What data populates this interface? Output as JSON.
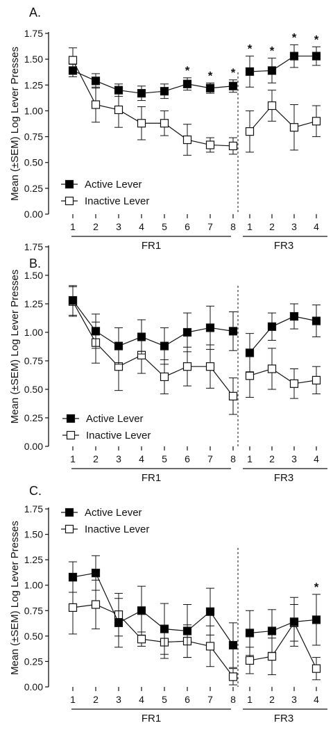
{
  "figure": {
    "ylabel": "Mean (±SEM) Log Lever Presses"
  },
  "chart_data": [
    {
      "panel": "A.",
      "type": "line",
      "ylabel": "Mean (±SEM) Log Lever Presses",
      "ylim": [
        0,
        1.75
      ],
      "yticks": [
        "0.00",
        "0.25",
        "0.50",
        "0.75",
        "1.00",
        "1.25",
        "1.50",
        "1.75"
      ],
      "groups": [
        {
          "name": "FR1",
          "x": [
            "1",
            "2",
            "3",
            "4",
            "5",
            "6",
            "7",
            "8"
          ]
        },
        {
          "name": "FR3",
          "x": [
            "1",
            "2",
            "3",
            "4"
          ]
        }
      ],
      "legend": "top-left",
      "series": [
        {
          "name": "Active Lever",
          "marker": "filled-square",
          "values": [
            [
              1.39,
              1.29,
              1.2,
              1.17,
              1.19,
              1.26,
              1.22,
              1.24
            ],
            [
              1.38,
              1.39,
              1.53,
              1.53
            ]
          ],
          "errors": [
            [
              0.06,
              0.07,
              0.06,
              0.07,
              0.07,
              0.06,
              0.05,
              0.06
            ],
            [
              0.15,
              0.12,
              0.11,
              0.09
            ]
          ]
        },
        {
          "name": "Inactive Lever",
          "marker": "open-square",
          "values": [
            [
              1.49,
              1.06,
              1.01,
              0.88,
              0.88,
              0.72,
              0.67,
              0.66
            ],
            [
              0.8,
              1.05,
              0.84,
              0.9
            ]
          ],
          "errors": [
            [
              0.12,
              0.17,
              0.17,
              0.16,
              0.12,
              0.15,
              0.07,
              0.08
            ],
            [
              0.2,
              0.15,
              0.22,
              0.15
            ]
          ]
        }
      ],
      "significance": {
        "symbol": "*",
        "points": [
          [
            0,
            5
          ],
          [
            0,
            6
          ],
          [
            0,
            7
          ],
          [
            1,
            0
          ],
          [
            1,
            1
          ],
          [
            1,
            2
          ],
          [
            1,
            3
          ]
        ]
      }
    },
    {
      "panel": "B.",
      "type": "line",
      "ylabel": "Mean (±SEM) Log Lever Presses",
      "ylim": [
        0,
        1.75
      ],
      "yticks": [
        "0.00",
        "0.25",
        "0.50",
        "0.75",
        "1.00",
        "1.25",
        "1.50",
        "1.75"
      ],
      "groups": [
        {
          "name": "FR1",
          "x": [
            "1",
            "2",
            "3",
            "4",
            "5",
            "6",
            "7",
            "8"
          ]
        },
        {
          "name": "FR3",
          "x": [
            "1",
            "2",
            "3",
            "4"
          ]
        }
      ],
      "legend": "bottom-left",
      "series": [
        {
          "name": "Active Lever",
          "marker": "filled-square",
          "values": [
            [
              1.28,
              1.01,
              0.88,
              0.96,
              0.88,
              1.0,
              1.04,
              1.01
            ],
            [
              0.82,
              1.05,
              1.14,
              1.1
            ]
          ],
          "errors": [
            [
              0.13,
              0.15,
              0.16,
              0.15,
              0.16,
              0.17,
              0.19,
              0.17
            ],
            [
              0.17,
              0.12,
              0.11,
              0.14
            ]
          ]
        },
        {
          "name": "Inactive Lever",
          "marker": "open-square",
          "values": [
            [
              1.27,
              0.91,
              0.7,
              0.8,
              0.61,
              0.7,
              0.7,
              0.44
            ],
            [
              0.62,
              0.68,
              0.55,
              0.58
            ]
          ],
          "errors": [
            [
              0.13,
              0.18,
              0.21,
              0.16,
              0.15,
              0.17,
              0.19,
              0.16
            ],
            [
              0.19,
              0.18,
              0.13,
              0.12
            ]
          ]
        }
      ],
      "significance": {
        "symbol": "*",
        "points": []
      }
    },
    {
      "panel": "C.",
      "type": "line",
      "ylabel": "Mean (±SEM) Log Lever Presses",
      "ylim": [
        0,
        1.75
      ],
      "yticks": [
        "0.00",
        "0.25",
        "0.50",
        "0.75",
        "1.00",
        "1.25",
        "1.50",
        "1.75"
      ],
      "groups": [
        {
          "name": "FR1",
          "x": [
            "1",
            "2",
            "3",
            "4",
            "5",
            "6",
            "7",
            "8"
          ]
        },
        {
          "name": "FR3",
          "x": [
            "1",
            "2",
            "3",
            "4"
          ]
        }
      ],
      "legend": "top-left",
      "series": [
        {
          "name": "Active Lever",
          "marker": "filled-square",
          "values": [
            [
              1.08,
              1.12,
              0.63,
              0.75,
              0.57,
              0.55,
              0.74,
              0.41
            ],
            [
              0.53,
              0.55,
              0.64,
              0.66
            ]
          ],
          "errors": [
            [
              0.15,
              0.17,
              0.24,
              0.24,
              0.25,
              0.26,
              0.23,
              0.22
            ],
            [
              0.22,
              0.21,
              0.24,
              0.25
            ]
          ]
        },
        {
          "name": "Inactive Lever",
          "marker": "open-square",
          "values": [
            [
              0.78,
              0.81,
              0.71,
              0.47,
              0.44,
              0.45,
              0.4,
              0.1
            ],
            [
              0.26,
              0.3,
              0.63,
              0.18
            ]
          ],
          "errors": [
            [
              0.26,
              0.24,
              0.21,
              0.07,
              0.16,
              0.16,
              0.2,
              0.08
            ],
            [
              0.13,
              0.18,
              0.18,
              0.11
            ]
          ]
        }
      ],
      "significance": {
        "symbol": "*",
        "points": [
          [
            1,
            3
          ]
        ]
      }
    }
  ]
}
